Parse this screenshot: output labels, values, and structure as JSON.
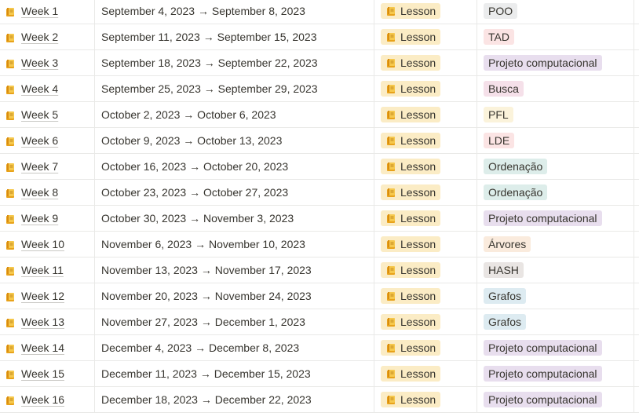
{
  "tag_colors": {
    "gray": "#ebeced",
    "red": "#fbe4e4",
    "purple": "#e8deee",
    "pink": "#f5e0e9",
    "yellow": "#fbf3db",
    "green": "#ddedea",
    "orange": "#faebdd",
    "brown": "#e9e5e3",
    "blue": "#ddebf1",
    "lesson": "#fbecc5"
  },
  "rows": [
    {
      "name": "Week 1",
      "date": "September 4, 2023 → September 8, 2023",
      "type": "Lesson",
      "topic": "POO",
      "topic_color": "gray"
    },
    {
      "name": "Week 2",
      "date": "September 11, 2023 → September 15, 2023",
      "type": "Lesson",
      "topic": "TAD",
      "topic_color": "red"
    },
    {
      "name": "Week 3",
      "date": "September 18, 2023 → September 22, 2023",
      "type": "Lesson",
      "topic": "Projeto computacional",
      "topic_color": "purple"
    },
    {
      "name": "Week 4",
      "date": "September 25, 2023 → September 29, 2023",
      "type": "Lesson",
      "topic": "Busca",
      "topic_color": "pink"
    },
    {
      "name": "Week 5",
      "date": "October 2, 2023 → October 6, 2023",
      "type": "Lesson",
      "topic": "PFL",
      "topic_color": "yellow"
    },
    {
      "name": "Week 6",
      "date": "October 9, 2023 → October 13, 2023",
      "type": "Lesson",
      "topic": "LDE",
      "topic_color": "red"
    },
    {
      "name": "Week 7",
      "date": "October 16, 2023 → October 20, 2023",
      "type": "Lesson",
      "topic": "Ordenação",
      "topic_color": "green"
    },
    {
      "name": "Week 8",
      "date": "October 23, 2023 → October 27, 2023",
      "type": "Lesson",
      "topic": "Ordenação",
      "topic_color": "green"
    },
    {
      "name": "Week 9",
      "date": "October 30, 2023 → November 3, 2023",
      "type": "Lesson",
      "topic": "Projeto computacional",
      "topic_color": "purple"
    },
    {
      "name": "Week 10",
      "date": "November 6, 2023 → November 10, 2023",
      "type": "Lesson",
      "topic": "Árvores",
      "topic_color": "orange"
    },
    {
      "name": "Week 11",
      "date": "November 13, 2023 → November 17, 2023",
      "type": "Lesson",
      "topic": "HASH",
      "topic_color": "brown"
    },
    {
      "name": "Week 12",
      "date": "November 20, 2023 → November 24, 2023",
      "type": "Lesson",
      "topic": "Grafos",
      "topic_color": "blue"
    },
    {
      "name": "Week 13",
      "date": "November 27, 2023 → December 1, 2023",
      "type": "Lesson",
      "topic": "Grafos",
      "topic_color": "blue"
    },
    {
      "name": "Week 14",
      "date": "December 4, 2023 → December 8, 2023",
      "type": "Lesson",
      "topic": "Projeto computacional",
      "topic_color": "purple"
    },
    {
      "name": "Week 15",
      "date": "December 11, 2023 → December 15, 2023",
      "type": "Lesson",
      "topic": "Projeto computacional",
      "topic_color": "purple"
    },
    {
      "name": "Week 16",
      "date": "December 18, 2023 → December 22, 2023",
      "type": "Lesson",
      "topic": "Projeto computacional",
      "topic_color": "purple"
    }
  ]
}
